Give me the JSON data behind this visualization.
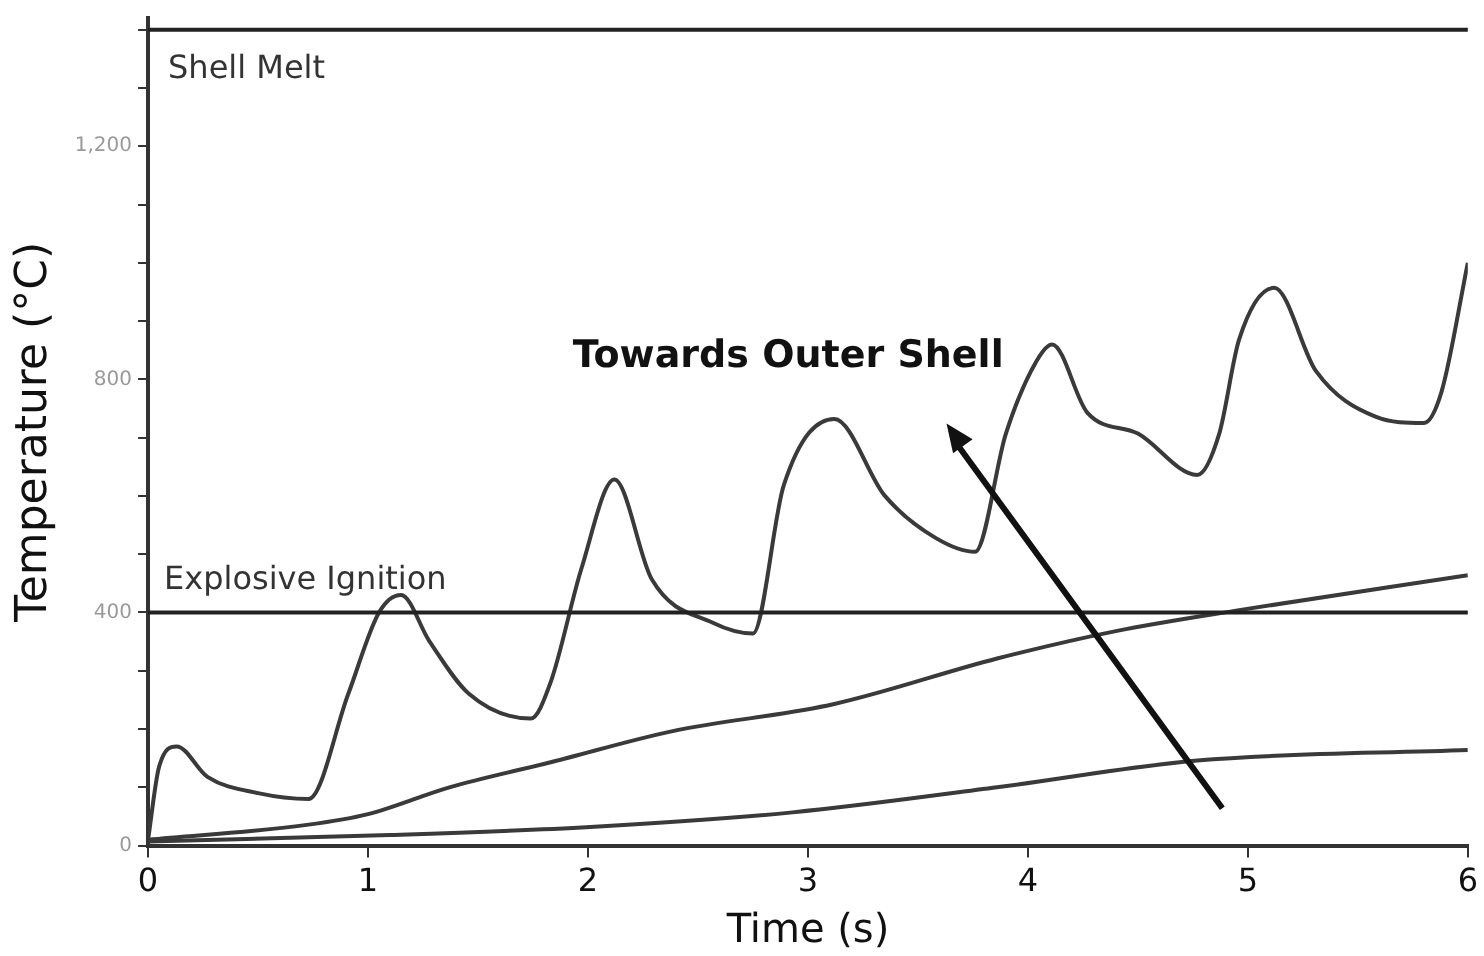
{
  "chart_data": {
    "type": "line",
    "xlabel": "Time (s)",
    "ylabel": "Temperature (°C)",
    "xlim": [
      0,
      6
    ],
    "xticks": [
      0,
      1,
      2,
      3,
      4,
      5,
      6
    ],
    "ylim": [
      0,
      1420
    ],
    "yticks": [
      0,
      {
        "value": 100,
        "label": null
      },
      {
        "value": 200,
        "label": null
      },
      {
        "value": 300,
        "label": null
      },
      400,
      {
        "value": 500,
        "label": null
      },
      {
        "value": 600,
        "label": null
      },
      {
        "value": 700,
        "label": null
      },
      800,
      {
        "value": 900,
        "label": null
      },
      {
        "value": 1000,
        "label": null
      },
      {
        "value": 1100,
        "label": null
      },
      {
        "value": 1200,
        "label": "1,200"
      },
      {
        "value": 1300,
        "label": null
      },
      {
        "value": 1400,
        "label": null
      }
    ],
    "grid": false,
    "legend": false,
    "marker": "none",
    "line_style": "solid",
    "series": [
      {
        "color": "#3a3a3a",
        "x": [
          0,
          0.05,
          0.13,
          0.27,
          0.5,
          0.73,
          0.91,
          1.05,
          1.15,
          1.28,
          1.46,
          1.74,
          1.83,
          1.97,
          2.12,
          2.29,
          2.57,
          2.75,
          2.89,
          3.12,
          3.35,
          3.58,
          3.76,
          3.9,
          4.04,
          4.11,
          4.27,
          4.5,
          4.77,
          4.87,
          4.96,
          5.12,
          5.31,
          5.58,
          5.8,
          5.88,
          6
        ],
        "values": [
          10,
          135,
          170,
          118,
          90,
          80,
          260,
          400,
          430,
          350,
          260,
          218,
          280,
          475,
          628,
          457,
          382,
          364,
          618,
          732,
          600,
          528,
          504,
          707,
          832,
          860,
          743,
          707,
          636,
          707,
          868,
          957,
          814,
          736,
          725,
          778,
          1000
        ]
      },
      {
        "color": "#3a3a3a",
        "x": [
          0,
          0.73,
          1,
          1.37,
          1.83,
          2.38,
          3.12,
          3.86,
          4.4,
          4.96,
          6
        ],
        "values": [
          10,
          36,
          54,
          100,
          143,
          196,
          243,
          321,
          368,
          404,
          464
        ]
      },
      {
        "color": "#3a3a3a",
        "x": [
          0,
          1.1,
          2.01,
          2.93,
          3.86,
          4.77,
          6
        ],
        "values": [
          7,
          18,
          32,
          57,
          100,
          146,
          164
        ]
      }
    ],
    "ref_lines": [
      {
        "axis": "y",
        "value": 1400,
        "label": "Shell Melt",
        "color": "#222222"
      },
      {
        "axis": "y",
        "value": 400,
        "label": "Explosive Ignition",
        "color": "#222222"
      }
    ],
    "annotations": [
      "Towards Outer Shell"
    ]
  }
}
